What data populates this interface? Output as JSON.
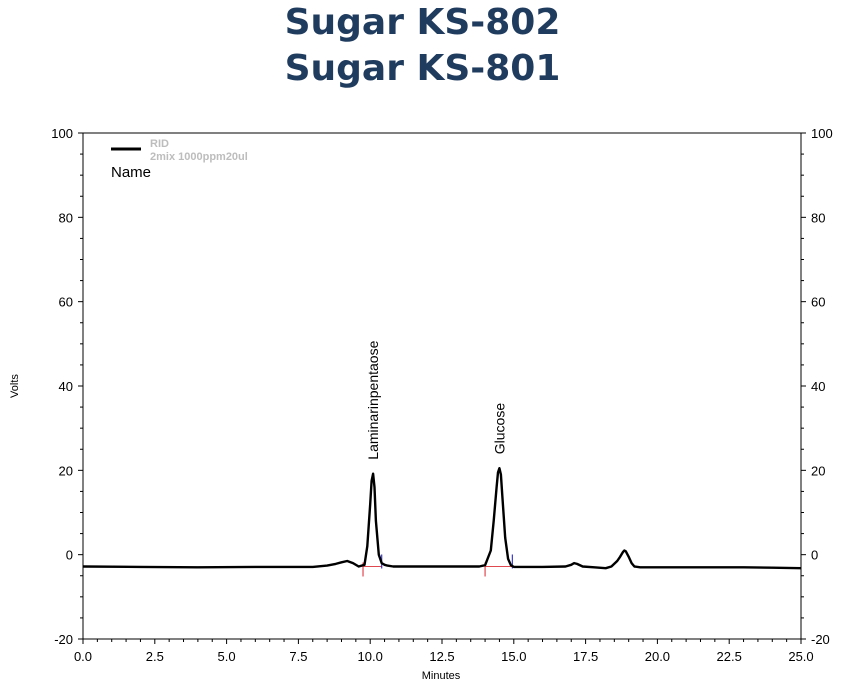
{
  "header": {
    "title_line1": "Sugar KS-802",
    "title_line2": "Sugar KS-801"
  },
  "chart_data": {
    "type": "line",
    "xlabel": "Minutes",
    "ylabel": "Volts",
    "xlim": [
      0,
      25
    ],
    "ylim": [
      -20,
      100
    ],
    "x_ticks": [
      0.0,
      2.5,
      5.0,
      7.5,
      10.0,
      12.5,
      15.0,
      17.5,
      20.0,
      22.5,
      25.0
    ],
    "x_tick_labels": [
      "0.0",
      "2.5",
      "5.0",
      "7.5",
      "10.0",
      "12.5",
      "15.0",
      "17.5",
      "20.0",
      "22.5",
      "25.0"
    ],
    "y_ticks": [
      -20,
      0,
      20,
      40,
      60,
      80,
      100
    ],
    "y_tick_labels": [
      "-20",
      "0",
      "20",
      "40",
      "60",
      "80",
      "100"
    ],
    "grid": false,
    "legend": {
      "placement": "top-left",
      "header": "Name",
      "series_line1": "RID",
      "series_line2": "2mix 1000ppm20ul"
    },
    "series": [
      {
        "name": "RID 2mix 1000ppm20ul",
        "color": "#000000",
        "x": [
          0.0,
          2.0,
          4.0,
          6.0,
          8.0,
          8.5,
          8.8,
          9.0,
          9.2,
          9.4,
          9.6,
          9.8,
          9.9,
          10.0,
          10.05,
          10.1,
          10.15,
          10.2,
          10.3,
          10.4,
          10.5,
          10.6,
          10.8,
          11.0,
          12.0,
          13.0,
          13.8,
          14.0,
          14.2,
          14.3,
          14.4,
          14.45,
          14.5,
          14.55,
          14.6,
          14.7,
          14.8,
          14.9,
          15.0,
          15.2,
          16.0,
          16.8,
          17.0,
          17.1,
          17.2,
          17.4,
          17.8,
          18.2,
          18.4,
          18.6,
          18.7,
          18.8,
          18.85,
          18.9,
          19.0,
          19.1,
          19.2,
          19.4,
          20.0,
          21.0,
          22.0,
          23.0,
          24.0,
          25.0
        ],
        "y": [
          -2.8,
          -2.9,
          -3.0,
          -2.9,
          -2.9,
          -2.6,
          -2.2,
          -1.8,
          -1.5,
          -2.0,
          -2.8,
          -2.4,
          2.0,
          12.0,
          17.5,
          19.2,
          16.0,
          8.0,
          0.0,
          -2.0,
          -2.4,
          -2.6,
          -2.8,
          -2.8,
          -2.8,
          -2.8,
          -2.8,
          -2.5,
          1.0,
          8.0,
          16.0,
          19.5,
          20.5,
          19.0,
          14.0,
          4.0,
          -1.0,
          -2.5,
          -2.9,
          -2.9,
          -2.9,
          -2.8,
          -2.4,
          -2.0,
          -2.2,
          -2.8,
          -3.0,
          -3.2,
          -2.8,
          -1.5,
          -0.5,
          0.6,
          1.0,
          0.8,
          -0.5,
          -2.0,
          -2.8,
          -3.0,
          -3.0,
          -3.0,
          -3.0,
          -3.0,
          -3.1,
          -3.2
        ]
      }
    ],
    "peaks": [
      {
        "label": "Laminarinpentaose",
        "rt": 10.1,
        "height": 19.2,
        "start": 9.75,
        "end": 10.4
      },
      {
        "label": "Glucose",
        "rt": 14.5,
        "height": 20.5,
        "start": 14.0,
        "end": 14.95
      }
    ],
    "baseline_color": "#e0484f",
    "marker_end_color": "#3a3ad0"
  }
}
